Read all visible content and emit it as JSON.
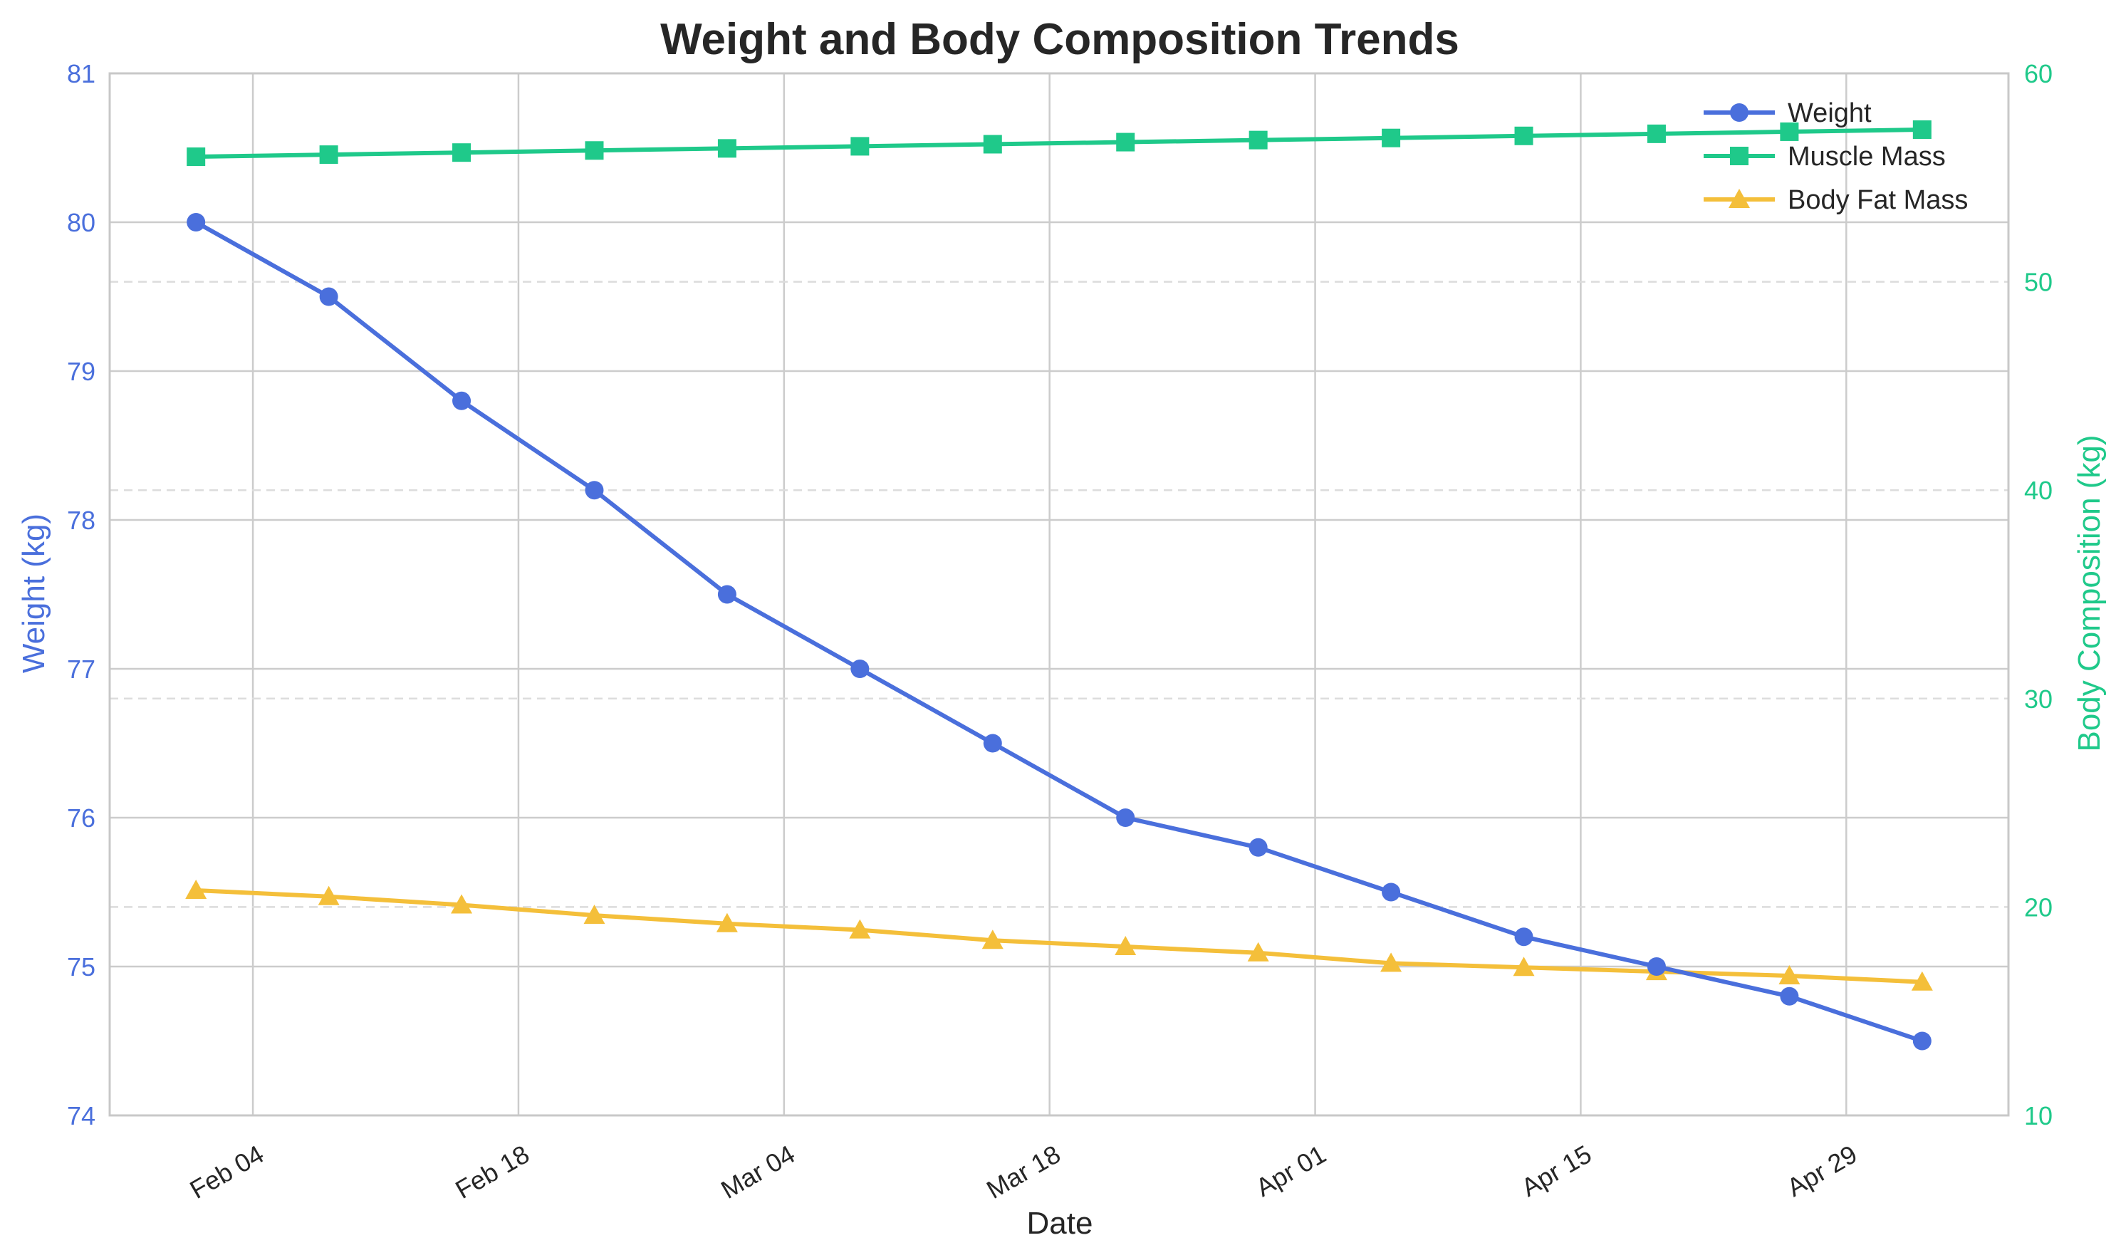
{
  "chart_data": {
    "type": "line",
    "title": "Weight and Body Composition Trends",
    "xlabel": "Date",
    "ylabel_left": "Weight (kg)",
    "ylabel_right": "Body Composition (kg)",
    "ylim_left": [
      74,
      81
    ],
    "ylim_right": [
      10,
      60
    ],
    "x_ticks": [
      "Feb 04",
      "Feb 18",
      "Mar 04",
      "Mar 18",
      "Apr 01",
      "Apr 15",
      "Apr 29"
    ],
    "y_ticks_left": [
      "74",
      "75",
      "76",
      "77",
      "78",
      "79",
      "80",
      "81"
    ],
    "y_ticks_right": [
      "10",
      "20",
      "30",
      "40",
      "50",
      "60"
    ],
    "x": [
      "2023-02-01",
      "2023-02-08",
      "2023-02-15",
      "2023-02-22",
      "2023-03-01",
      "2023-03-08",
      "2023-03-15",
      "2023-03-22",
      "2023-03-29",
      "2023-04-05",
      "2023-04-12",
      "2023-04-19",
      "2023-04-26",
      "2023-05-03"
    ],
    "series": [
      {
        "name": "Weight",
        "axis": "left",
        "marker": "circle",
        "color": "#4a6fdc",
        "values": [
          80.0,
          79.5,
          78.8,
          78.2,
          77.5,
          77.0,
          76.5,
          76.0,
          75.8,
          75.5,
          75.2,
          75.0,
          74.8,
          74.5
        ]
      },
      {
        "name": "Muscle Mass",
        "axis": "right",
        "marker": "square",
        "color": "#1fc98a",
        "values": [
          56.0,
          56.1,
          56.2,
          56.3,
          56.4,
          56.5,
          56.6,
          56.7,
          56.8,
          56.9,
          57.0,
          57.1,
          57.2,
          57.3
        ]
      },
      {
        "name": "Body Fat Mass",
        "axis": "right",
        "marker": "triangle",
        "color": "#f4bf3a",
        "values": [
          20.8,
          20.5,
          20.1,
          19.6,
          19.2,
          18.9,
          18.4,
          18.1,
          17.8,
          17.3,
          17.1,
          16.9,
          16.7,
          16.4
        ]
      }
    ],
    "grid": true,
    "legend": "top-right",
    "colors": {
      "left_axis": "#4a6fdc",
      "right_axis": "#1fc98a",
      "text": "#262626",
      "grid": "#cccccc"
    }
  }
}
